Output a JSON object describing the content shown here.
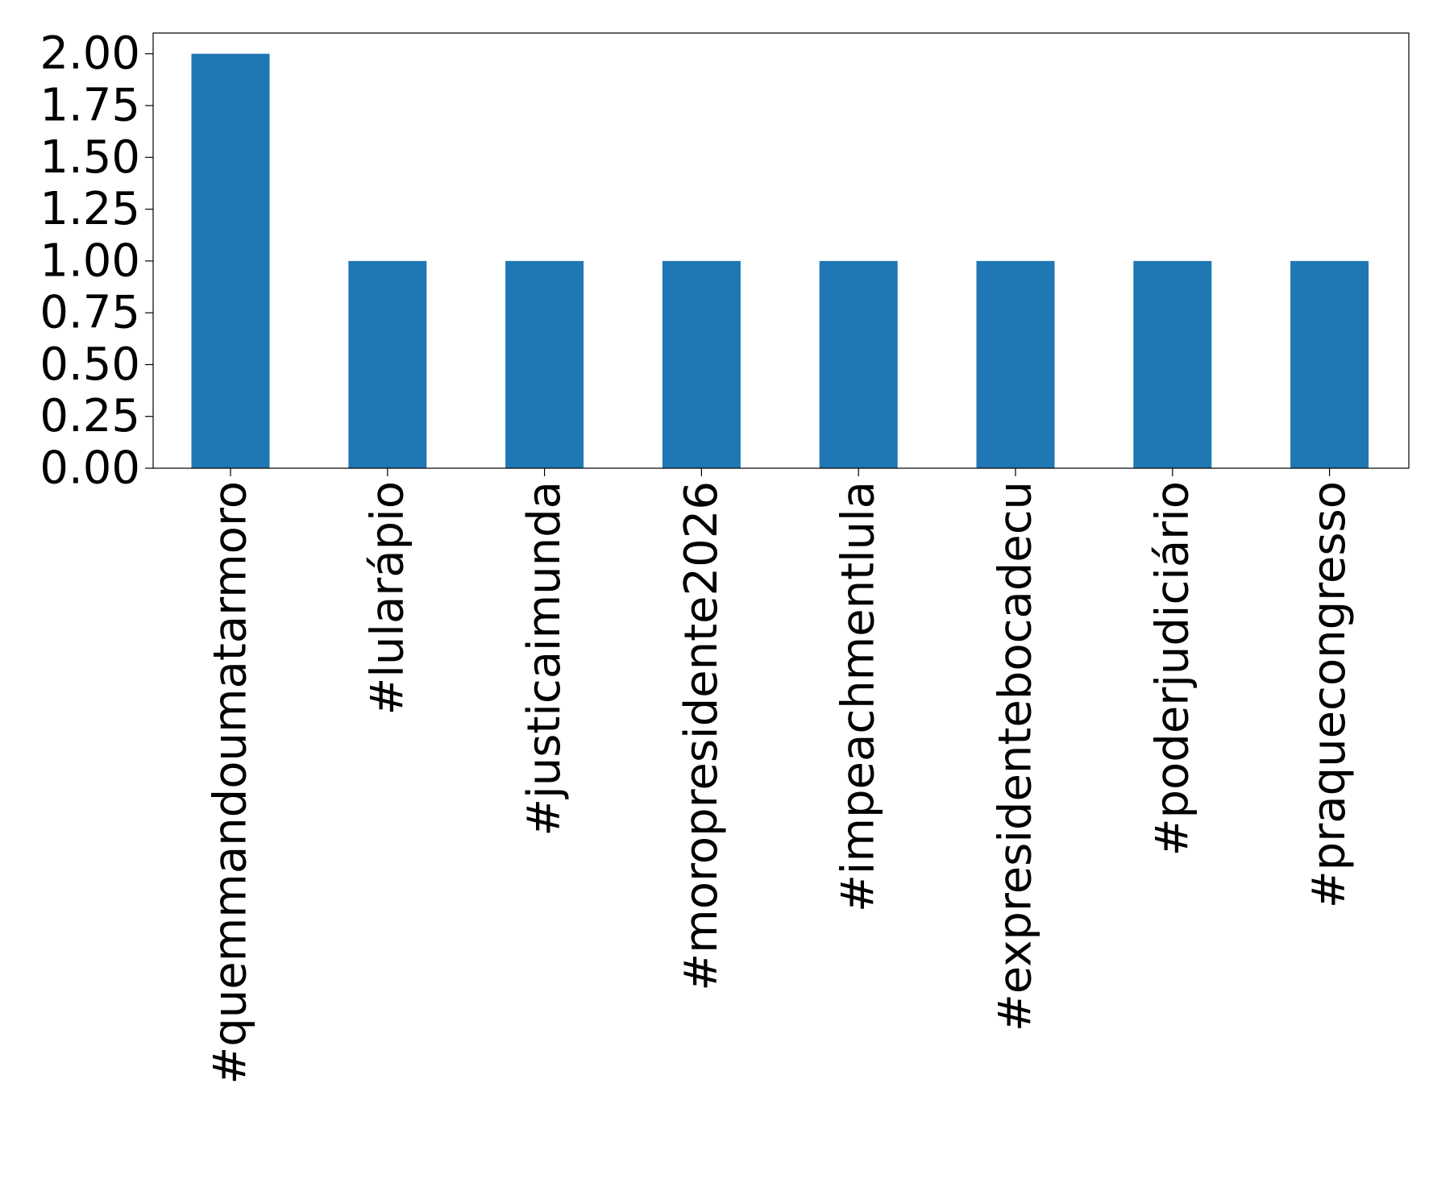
{
  "chart_data": {
    "type": "bar",
    "title": "",
    "xlabel": "",
    "ylabel": "",
    "categories": [
      "#quemmandoumatarmoro",
      "#lularápio",
      "#justicaimunda",
      "#moropresidente2026",
      "#impeachmentlula",
      "#expresidentebocadecu",
      "#poderjudiciário",
      "#praquecongresso"
    ],
    "values": [
      2,
      1,
      1,
      1,
      1,
      1,
      1,
      1
    ],
    "ylim": [
      0,
      2.1
    ],
    "yticks": [
      "0.00",
      "0.25",
      "0.50",
      "0.75",
      "1.00",
      "1.25",
      "1.50",
      "1.75",
      "2.00"
    ],
    "grid": false,
    "legend": "none",
    "bar_color": "#1f77b4"
  }
}
